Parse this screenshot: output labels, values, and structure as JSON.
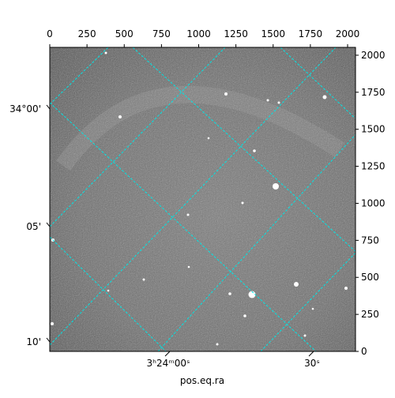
{
  "chart_data": {
    "type": "image",
    "xlim": [
      0,
      2053
    ],
    "ylim": [
      0,
      2053
    ],
    "xticks": [
      0,
      250,
      500,
      750,
      1000,
      1250,
      1500,
      1750,
      2000
    ],
    "yticks": [
      0,
      250,
      500,
      750,
      1000,
      1250,
      1500,
      1750,
      2000
    ],
    "xlabel": "pos.eq.ra",
    "ra_ticks": [
      "3ʰ24ᵐ00ˢ",
      "30ˢ"
    ],
    "dec_ticks": [
      "34°00'",
      "05'",
      "10'"
    ],
    "grid_color": "#00e5e5"
  }
}
